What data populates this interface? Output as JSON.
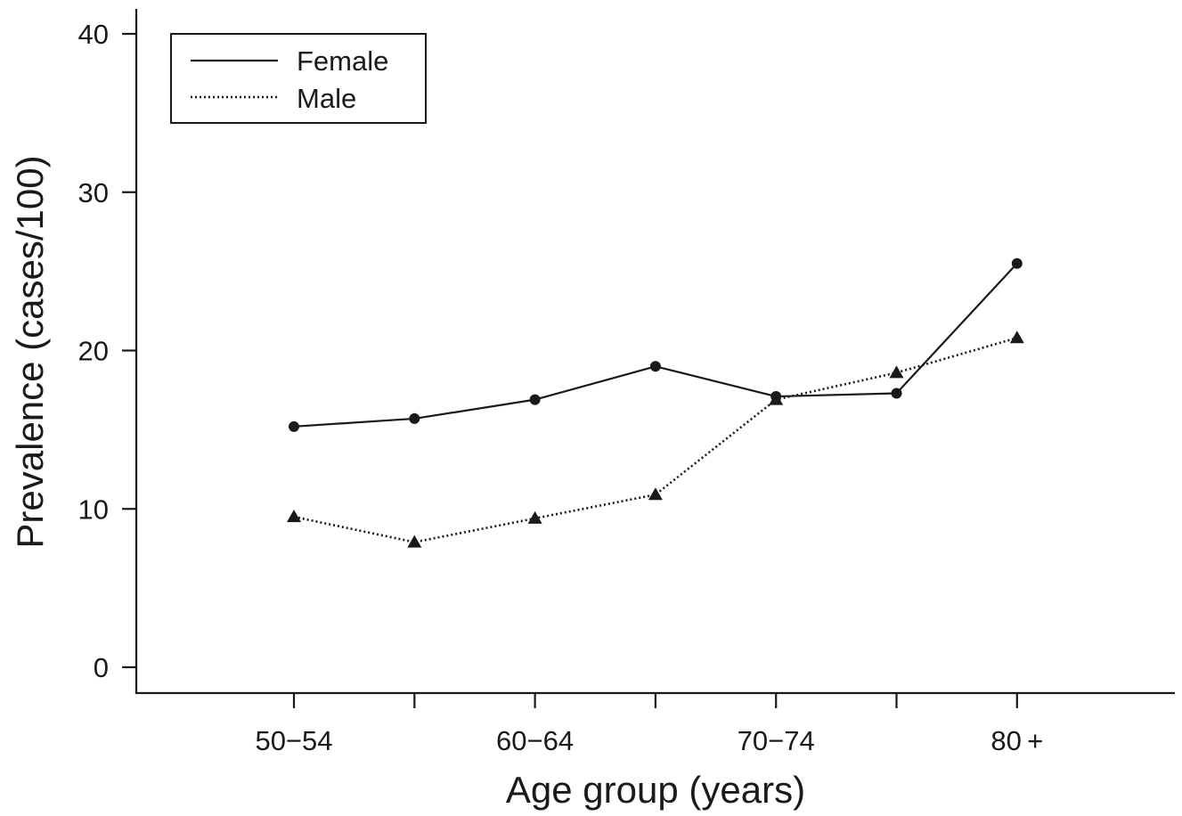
{
  "chart_data": {
    "type": "line",
    "xlabel": "Age group (years)",
    "ylabel": "Prevalence (cases/100)",
    "ylim": [
      0,
      40
    ],
    "yticks": [
      0,
      10,
      20,
      30,
      40
    ],
    "x_tick_labels": [
      "50−54",
      "",
      "60−64",
      "",
      "70−74",
      "",
      "80 +"
    ],
    "x_count": 7,
    "legend_position": "top-left",
    "grid": false,
    "series": [
      {
        "name": "Female",
        "line_style": "solid",
        "marker": "circle",
        "color": "#1a1a1a",
        "values": [
          15.2,
          15.7,
          16.9,
          19.0,
          17.1,
          17.3,
          25.5
        ]
      },
      {
        "name": "Male",
        "line_style": "dotted",
        "marker": "triangle",
        "color": "#1a1a1a",
        "values": [
          9.5,
          7.9,
          9.4,
          10.9,
          16.9,
          18.6,
          20.8
        ]
      }
    ]
  }
}
